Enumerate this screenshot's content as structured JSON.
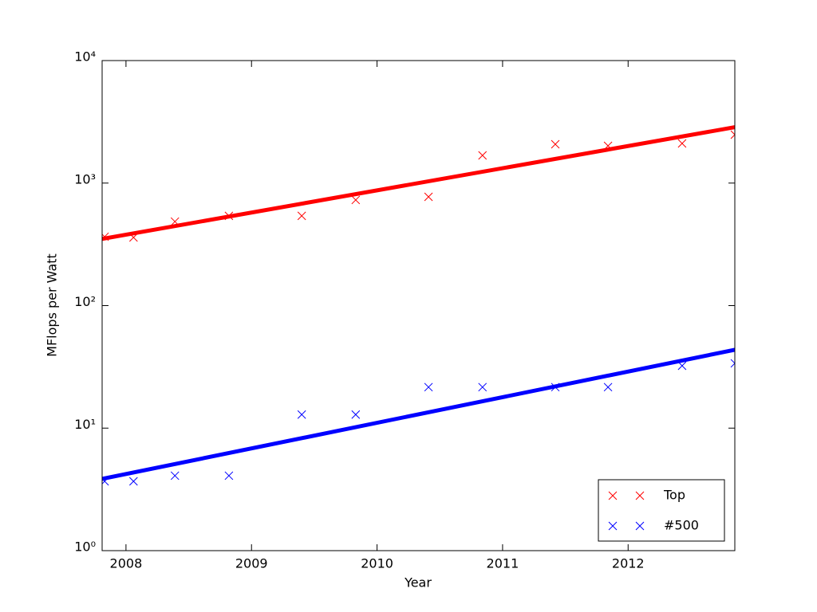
{
  "chart_data": {
    "type": "scatter",
    "x_label": "Year",
    "y_label": "MFlops per Watt",
    "xlim": [
      2007.81,
      2012.85
    ],
    "ylim": [
      1,
      10000
    ],
    "yscale": "log",
    "xticks": [
      2008,
      2009,
      2010,
      2011,
      2012
    ],
    "yticks": [
      {
        "value": 1,
        "label": "10⁰"
      },
      {
        "value": 10,
        "label": "10¹"
      },
      {
        "value": 100,
        "label": "10²"
      },
      {
        "value": 1000,
        "label": "10³"
      },
      {
        "value": 10000,
        "label": "10⁴"
      }
    ],
    "legend": "lower right",
    "x": [
      2007.83,
      2008.06,
      2008.39,
      2008.82,
      2009.4,
      2009.83,
      2010.41,
      2010.84,
      2011.42,
      2011.84,
      2012.43,
      2012.85
    ],
    "series": [
      {
        "name": "Top",
        "color": "#ff0000",
        "values": [
          365,
          360,
          485,
          540,
          540,
          728,
          772,
          1683,
          2075,
          2015,
          2107,
          2484
        ]
      },
      {
        "name": "#500",
        "color": "#0000ff",
        "values": [
          3.68,
          3.68,
          4.09,
          4.09,
          12.9,
          12.9,
          21.6,
          21.6,
          21.6,
          21.6,
          32.3,
          33.8
        ]
      }
    ],
    "fits": [
      {
        "color": "#ff0000",
        "x": [
          2007.81,
          2012.85
        ],
        "values": [
          350,
          2860
        ]
      },
      {
        "color": "#0000ff",
        "x": [
          2007.81,
          2012.85
        ],
        "values": [
          3.85,
          43.6
        ]
      }
    ]
  }
}
